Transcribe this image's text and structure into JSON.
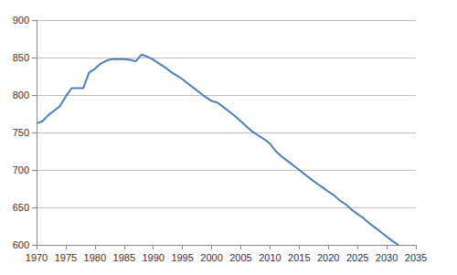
{
  "chart_data": {
    "type": "line",
    "x": [
      1970,
      1971,
      1972,
      1973,
      1974,
      1975,
      1976,
      1977,
      1978,
      1979,
      1980,
      1981,
      1982,
      1983,
      1984,
      1985,
      1986,
      1987,
      1988,
      1989,
      1990,
      1991,
      1992,
      1993,
      1994,
      1995,
      1996,
      1997,
      1998,
      1999,
      2000,
      2001,
      2002,
      2003,
      2004,
      2005,
      2006,
      2007,
      2008,
      2009,
      2010,
      2011,
      2012,
      2013,
      2014,
      2015,
      2016,
      2017,
      2018,
      2019,
      2020,
      2021,
      2022,
      2023,
      2024,
      2025,
      2026,
      2027,
      2028,
      2029,
      2030,
      2031,
      2032
    ],
    "values": [
      762,
      765,
      773,
      779,
      785,
      798,
      809,
      809,
      809,
      830,
      835,
      842,
      846,
      848,
      848,
      848,
      847,
      845,
      854,
      851,
      847,
      842,
      837,
      831,
      826,
      821,
      815,
      809,
      803,
      797,
      792,
      790,
      784,
      778,
      772,
      765,
      758,
      751,
      746,
      741,
      735,
      725,
      718,
      712,
      706,
      700,
      694,
      688,
      682,
      677,
      671,
      666,
      659,
      654,
      647,
      641,
      636,
      629,
      623,
      617,
      611,
      605,
      600
    ],
    "color": "#4a7ebb",
    "xlim": [
      1970,
      2035
    ],
    "xticks": [
      1970,
      1975,
      1980,
      1985,
      1990,
      1995,
      2000,
      2005,
      2010,
      2015,
      2020,
      2025,
      2030,
      2035
    ],
    "ylim": [
      600,
      900
    ],
    "yticks": [
      600,
      650,
      700,
      750,
      800,
      850,
      900
    ],
    "grid": true
  }
}
